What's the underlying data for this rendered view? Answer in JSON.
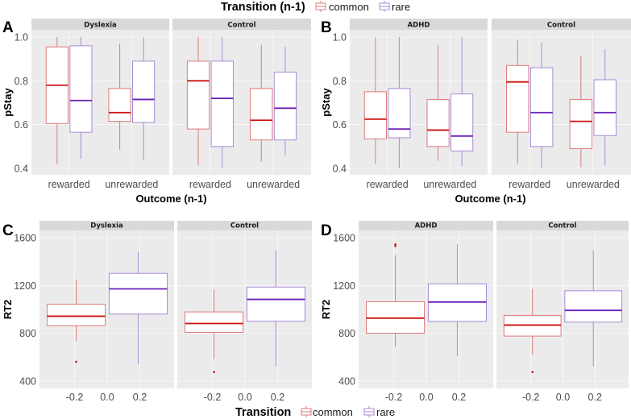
{
  "colors": {
    "common_box": "#E07A7A",
    "common_median": "#CC1111",
    "rare_box": "#A98AD8",
    "rare_median": "#6A22B8",
    "panel_bg": "#EBEBEB",
    "strip_bg": "#D9D9D9",
    "grid": "#FFFFFF"
  },
  "legend_top": {
    "title": "Transition (n-1)",
    "items": [
      "common",
      "rare"
    ]
  },
  "legend_bottom": {
    "title": "Transition",
    "items": [
      "common",
      "rare"
    ]
  },
  "chart_data": [
    {
      "id": "A",
      "type": "boxplot",
      "letter": "A",
      "xlabel": "Outcome (n-1)",
      "ylabel": "pStay",
      "categories": [
        "rewarded",
        "unrewarded"
      ],
      "ylim": [
        0.37,
        1.07
      ],
      "yticks": [
        0.4,
        0.6,
        0.8,
        1.0
      ],
      "ytick_labels": [
        "0.4",
        "0.6",
        "0.8",
        "1.0"
      ],
      "facets": [
        {
          "label": "Dyslexia",
          "boxes": [
            {
              "cat": "rewarded",
              "series": "common",
              "min": 0.42,
              "q1": 0.605,
              "median": 0.78,
              "q3": 0.955,
              "max": 1.0,
              "outliers": []
            },
            {
              "cat": "rewarded",
              "series": "rare",
              "min": 0.445,
              "q1": 0.565,
              "median": 0.71,
              "q3": 0.96,
              "max": 1.0,
              "outliers": []
            },
            {
              "cat": "unrewarded",
              "series": "common",
              "min": 0.485,
              "q1": 0.615,
              "median": 0.655,
              "q3": 0.765,
              "max": 0.97,
              "outliers": []
            },
            {
              "cat": "unrewarded",
              "series": "rare",
              "min": 0.44,
              "q1": 0.61,
              "median": 0.715,
              "q3": 0.89,
              "max": 1.0,
              "outliers": []
            }
          ]
        },
        {
          "label": "Control",
          "boxes": [
            {
              "cat": "rewarded",
              "series": "common",
              "min": 0.415,
              "q1": 0.58,
              "median": 0.8,
              "q3": 0.89,
              "max": 1.0,
              "outliers": []
            },
            {
              "cat": "rewarded",
              "series": "rare",
              "min": 0.4,
              "q1": 0.5,
              "median": 0.72,
              "q3": 0.89,
              "max": 1.0,
              "outliers": []
            },
            {
              "cat": "unrewarded",
              "series": "common",
              "min": 0.43,
              "q1": 0.53,
              "median": 0.62,
              "q3": 0.765,
              "max": 0.965,
              "outliers": []
            },
            {
              "cat": "unrewarded",
              "series": "rare",
              "min": 0.46,
              "q1": 0.53,
              "median": 0.675,
              "q3": 0.84,
              "max": 0.955,
              "outliers": []
            }
          ]
        }
      ]
    },
    {
      "id": "B",
      "type": "boxplot",
      "letter": "B",
      "xlabel": "Outcome (n-1)",
      "ylabel": "pStay",
      "categories": [
        "rewarded",
        "unrewarded"
      ],
      "ylim": [
        0.37,
        1.07
      ],
      "yticks": [
        0.4,
        0.6,
        0.8,
        1.0
      ],
      "ytick_labels": [
        "0.4",
        "0.6",
        "0.8",
        "1.0"
      ],
      "facets": [
        {
          "label": "ADHD",
          "boxes": [
            {
              "cat": "rewarded",
              "series": "common",
              "min": 0.42,
              "q1": 0.535,
              "median": 0.625,
              "q3": 0.75,
              "max": 1.0,
              "outliers": []
            },
            {
              "cat": "rewarded",
              "series": "rare",
              "min": 0.4,
              "q1": 0.54,
              "median": 0.58,
              "q3": 0.765,
              "max": 1.0,
              "outliers": []
            },
            {
              "cat": "unrewarded",
              "series": "common",
              "min": 0.435,
              "q1": 0.5,
              "median": 0.575,
              "q3": 0.715,
              "max": 0.965,
              "outliers": []
            },
            {
              "cat": "unrewarded",
              "series": "rare",
              "min": 0.41,
              "q1": 0.48,
              "median": 0.548,
              "q3": 0.74,
              "max": 1.0,
              "outliers": []
            }
          ]
        },
        {
          "label": "Control",
          "boxes": [
            {
              "cat": "rewarded",
              "series": "common",
              "min": 0.42,
              "q1": 0.565,
              "median": 0.795,
              "q3": 0.87,
              "max": 0.985,
              "outliers": []
            },
            {
              "cat": "rewarded",
              "series": "rare",
              "min": 0.4,
              "q1": 0.5,
              "median": 0.655,
              "q3": 0.86,
              "max": 0.975,
              "outliers": []
            },
            {
              "cat": "unrewarded",
              "series": "common",
              "min": 0.405,
              "q1": 0.49,
              "median": 0.615,
              "q3": 0.715,
              "max": 0.915,
              "outliers": []
            },
            {
              "cat": "unrewarded",
              "series": "rare",
              "min": 0.415,
              "q1": 0.55,
              "median": 0.655,
              "q3": 0.805,
              "max": 0.945,
              "outliers": []
            }
          ]
        }
      ]
    },
    {
      "id": "C",
      "type": "boxplot",
      "letter": "C",
      "xlabel": "",
      "ylabel": "RT2",
      "xlim": [
        -0.415,
        0.41
      ],
      "xticks": [
        -0.2,
        0.0,
        0.2
      ],
      "xtick_labels": [
        "-0.2",
        "0.0",
        "0.2"
      ],
      "ylim": [
        350,
        1700
      ],
      "yticks": [
        400,
        800,
        1200,
        1600
      ],
      "ytick_labels": [
        "400",
        "800",
        "1200",
        "1600"
      ],
      "facets": [
        {
          "label": "Dyslexia",
          "boxes": [
            {
              "x": -0.19,
              "series": "common",
              "min": 736,
              "q1": 864,
              "median": 943,
              "q3": 1044,
              "max": 1248,
              "outliers": [
                562
              ]
            },
            {
              "x": 0.19,
              "series": "rare",
              "min": 546,
              "q1": 961,
              "median": 1172,
              "q3": 1302,
              "max": 1477,
              "outliers": []
            }
          ]
        },
        {
          "label": "Control",
          "boxes": [
            {
              "x": -0.19,
              "series": "common",
              "min": 584,
              "q1": 808,
              "median": 882,
              "q3": 979,
              "max": 1167,
              "outliers": [
                476
              ]
            },
            {
              "x": 0.19,
              "series": "rare",
              "min": 524,
              "q1": 902,
              "median": 1084,
              "q3": 1187,
              "max": 1495,
              "outliers": []
            }
          ]
        }
      ]
    },
    {
      "id": "D",
      "type": "boxplot",
      "letter": "D",
      "xlabel": "",
      "ylabel": "RT2",
      "xlim": [
        -0.415,
        0.41
      ],
      "xticks": [
        -0.2,
        0.0,
        0.2
      ],
      "xtick_labels": [
        "-0.2",
        "0.0",
        "0.2"
      ],
      "ylim": [
        350,
        1700
      ],
      "yticks": [
        400,
        800,
        1200,
        1600
      ],
      "ytick_labels": [
        "400",
        "800",
        "1200",
        "1600"
      ],
      "facets": [
        {
          "label": "ADHD",
          "boxes": [
            {
              "x": -0.19,
              "series": "common",
              "min": 687,
              "q1": 801,
              "median": 927,
              "q3": 1064,
              "max": 1454,
              "outliers": [
                1544,
                1530
              ]
            },
            {
              "x": 0.19,
              "series": "rare",
              "min": 609,
              "q1": 900,
              "median": 1062,
              "q3": 1214,
              "max": 1544,
              "outliers": []
            }
          ]
        },
        {
          "label": "Control",
          "boxes": [
            {
              "x": -0.19,
              "series": "common",
              "min": 622,
              "q1": 777,
              "median": 869,
              "q3": 950,
              "max": 1169,
              "outliers": [
                476
              ]
            },
            {
              "x": 0.19,
              "series": "rare",
              "min": 524,
              "q1": 894,
              "median": 992,
              "q3": 1156,
              "max": 1495,
              "outliers": []
            }
          ]
        }
      ]
    }
  ]
}
